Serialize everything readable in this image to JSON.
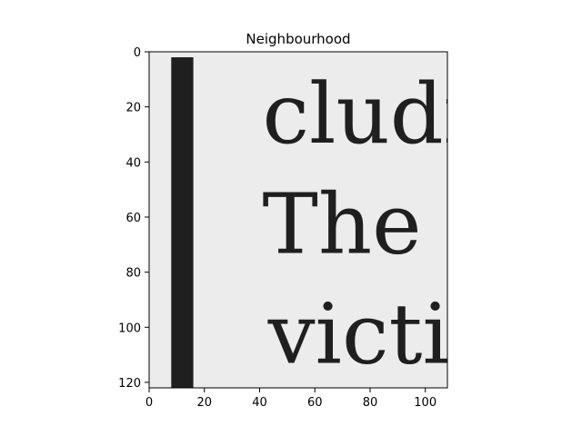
{
  "chart_data": {
    "type": "image",
    "title": "Neighbourhood",
    "xlabel": "",
    "ylabel": "",
    "xlim": [
      0,
      108
    ],
    "ylim": [
      122,
      0
    ],
    "x_ticks": [
      0,
      20,
      40,
      60,
      80,
      100
    ],
    "y_ticks": [
      0,
      20,
      40,
      60,
      80,
      100,
      120
    ],
    "y_inverted": true,
    "grid": false,
    "image_content": {
      "colormap": "gray",
      "background_color": "#ececec",
      "ink_color": "#1f1f1f",
      "vertical_bar_x_range": [
        8,
        16
      ],
      "text_lines": [
        "cludi",
        "The",
        "victi"
      ]
    }
  }
}
